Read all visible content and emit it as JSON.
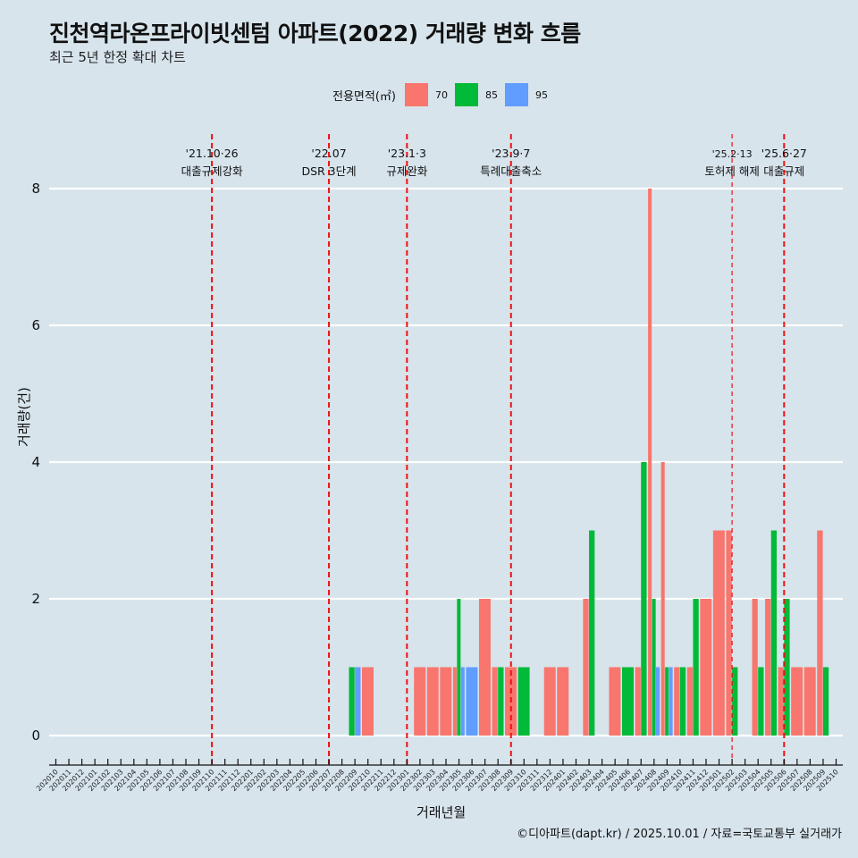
{
  "header": {
    "title": "진천역라온프라이빗센텀 아파트(2022) 거래량 변화 흐름",
    "subtitle": "최근 5년 한정 확대 차트"
  },
  "legend": {
    "title": "전용면적(㎡)",
    "items": [
      {
        "label": "70",
        "color": "#f8766d"
      },
      {
        "label": "85",
        "color": "#00ba38"
      },
      {
        "label": "95",
        "color": "#619cff"
      }
    ]
  },
  "caption": "©디아파트(dapt.kr) / 2025.10.01 / 자료=국토교통부 실거래가",
  "chart_data": {
    "type": "bar",
    "title": "진천역라온프라이빗센텀 아파트(2022) 거래량 변화 흐름",
    "subtitle": "최근 5년 한정 확대 차트",
    "xlabel": "거래년월",
    "ylabel": "거래량(건)",
    "ylim": [
      0,
      8
    ],
    "yticks": [
      0,
      2,
      4,
      6,
      8
    ],
    "grid": true,
    "legend_position": "top",
    "categories": [
      "202010",
      "202011",
      "202012",
      "202101",
      "202102",
      "202103",
      "202104",
      "202105",
      "202106",
      "202107",
      "202108",
      "202109",
      "202110",
      "202111",
      "202112",
      "202201",
      "202202",
      "202203",
      "202204",
      "202205",
      "202206",
      "202207",
      "202208",
      "202209",
      "202210",
      "202211",
      "202212",
      "202301",
      "202302",
      "202303",
      "202304",
      "202305",
      "202306",
      "202307",
      "202308",
      "202309",
      "202310",
      "202311",
      "202312",
      "202401",
      "202402",
      "202403",
      "202404",
      "202405",
      "202406",
      "202407",
      "202408",
      "202409",
      "202410",
      "202411",
      "202412",
      "202501",
      "202502",
      "202503",
      "202504",
      "202505",
      "202506",
      "202507",
      "202508",
      "202509",
      "202510"
    ],
    "series": [
      {
        "name": "70",
        "color": "#f8766d",
        "points": [
          {
            "x": "202210",
            "y": 1
          },
          {
            "x": "202302",
            "y": 1
          },
          {
            "x": "202303",
            "y": 1
          },
          {
            "x": "202304",
            "y": 1
          },
          {
            "x": "202305",
            "y": 1
          },
          {
            "x": "202307",
            "y": 2
          },
          {
            "x": "202308",
            "y": 1
          },
          {
            "x": "202309",
            "y": 1
          },
          {
            "x": "202312",
            "y": 1
          },
          {
            "x": "202401",
            "y": 1
          },
          {
            "x": "202403",
            "y": 2
          },
          {
            "x": "202405",
            "y": 1
          },
          {
            "x": "202407",
            "y": 1
          },
          {
            "x": "202408",
            "y": 8
          },
          {
            "x": "202409",
            "y": 4
          },
          {
            "x": "202410",
            "y": 1
          },
          {
            "x": "202411",
            "y": 1
          },
          {
            "x": "202412",
            "y": 2
          },
          {
            "x": "202501",
            "y": 3
          },
          {
            "x": "202502",
            "y": 3
          },
          {
            "x": "202504",
            "y": 2
          },
          {
            "x": "202505",
            "y": 2
          },
          {
            "x": "202506",
            "y": 1
          },
          {
            "x": "202507",
            "y": 1
          },
          {
            "x": "202508",
            "y": 1
          },
          {
            "x": "202509",
            "y": 3
          }
        ]
      },
      {
        "name": "85",
        "color": "#00ba38",
        "points": [
          {
            "x": "202209",
            "y": 1
          },
          {
            "x": "202305",
            "y": 2
          },
          {
            "x": "202308",
            "y": 1
          },
          {
            "x": "202310",
            "y": 1
          },
          {
            "x": "202403",
            "y": 3
          },
          {
            "x": "202406",
            "y": 1
          },
          {
            "x": "202407",
            "y": 4
          },
          {
            "x": "202408",
            "y": 2
          },
          {
            "x": "202409",
            "y": 1
          },
          {
            "x": "202410",
            "y": 1
          },
          {
            "x": "202411",
            "y": 2
          },
          {
            "x": "202502",
            "y": 1
          },
          {
            "x": "202504",
            "y": 1
          },
          {
            "x": "202505",
            "y": 3
          },
          {
            "x": "202506",
            "y": 2
          },
          {
            "x": "202509",
            "y": 1
          }
        ]
      },
      {
        "name": "95",
        "color": "#619cff",
        "points": [
          {
            "x": "202209",
            "y": 1
          },
          {
            "x": "202305",
            "y": 1
          },
          {
            "x": "202306",
            "y": 1
          },
          {
            "x": "202408",
            "y": 1
          },
          {
            "x": "202409",
            "y": 1
          }
        ]
      }
    ],
    "annotations": [
      {
        "x": "202110",
        "date": "'21.10·26",
        "label": "대출규제강화",
        "style": "dashed"
      },
      {
        "x": "202207",
        "date": "'22.07",
        "label": "DSR 3단계",
        "style": "dashed"
      },
      {
        "x": "202301",
        "date": "'23.1·3",
        "label": "규제완화",
        "style": "dashed"
      },
      {
        "x": "202309",
        "date": "'23.9·7",
        "label": "특례대출축소",
        "style": "dashed"
      },
      {
        "x": "202502",
        "date": "'25.2·13",
        "label": "토허제 해제",
        "style": "dashed-thin"
      },
      {
        "x": "202506",
        "date": "'25.6·27",
        "label": "대출규제",
        "style": "dashed"
      }
    ]
  }
}
